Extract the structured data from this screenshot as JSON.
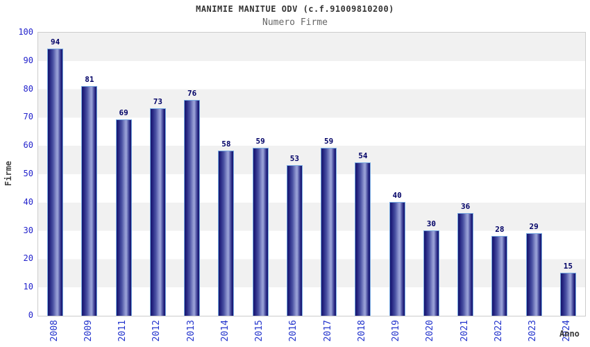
{
  "header": {
    "title": "MANIMIE MANITUE ODV (c.f.91009810200)",
    "subtitle": "Numero Firme"
  },
  "chart_data": {
    "type": "bar",
    "title": "MANIMIE MANITUE ODV (c.f.91009810200)",
    "subtitle": "Numero Firme",
    "categories": [
      "2008",
      "2009",
      "2011",
      "2012",
      "2013",
      "2014",
      "2015",
      "2016",
      "2017",
      "2018",
      "2019",
      "2020",
      "2021",
      "2022",
      "2023",
      "2024"
    ],
    "values": [
      94,
      81,
      69,
      73,
      76,
      58,
      59,
      53,
      59,
      54,
      40,
      30,
      36,
      28,
      29,
      15
    ],
    "xlabel": "Anno",
    "ylabel": "Firme",
    "ylim": [
      0,
      100
    ],
    "yticks": [
      0,
      10,
      20,
      30,
      40,
      50,
      60,
      70,
      80,
      90,
      100
    ],
    "grid": "alternating horizontal gray/white bands every 10 units",
    "legend": "none",
    "colors": {
      "bar_fill_dark": "#15156d",
      "bar_fill_light": "#9ba3d9",
      "bar_border": "#77aae2",
      "axis_tick_label": "#2222cc",
      "value_label": "#000066",
      "band_gray": "#f1f1f1",
      "plot_border": "#cccccc",
      "title": "#333333",
      "subtitle": "#666666",
      "axis_title": "#444444"
    }
  }
}
